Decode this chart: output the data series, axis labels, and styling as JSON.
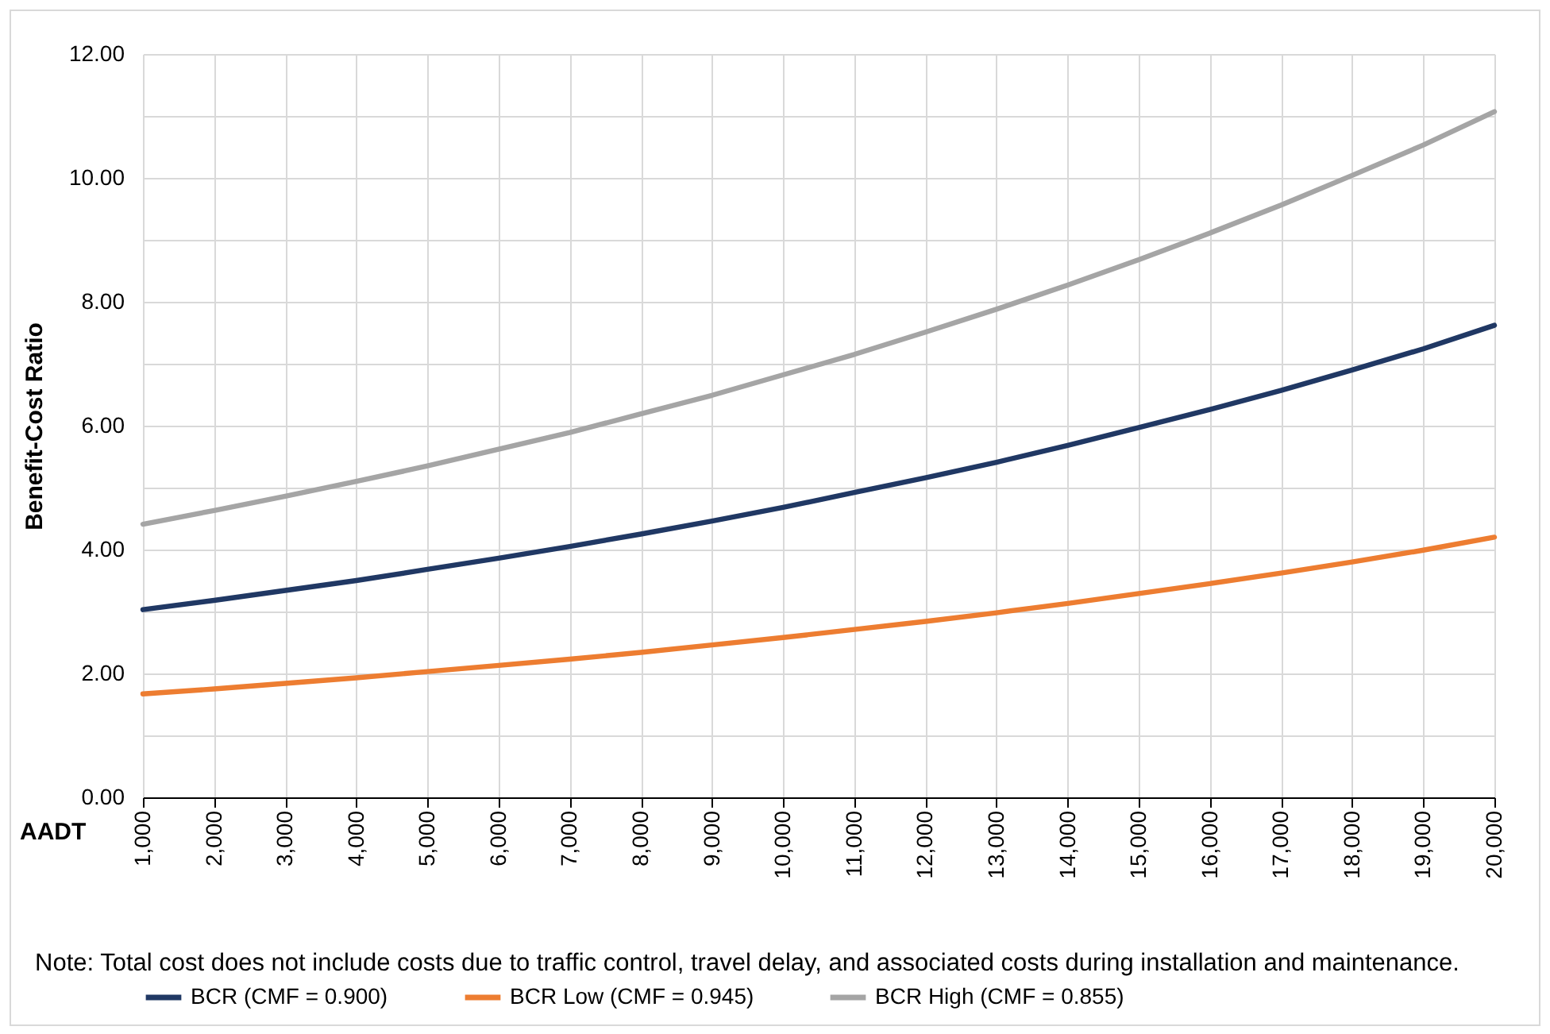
{
  "chart_data": {
    "type": "line",
    "ylabel": "Benefit-Cost Ratio",
    "xlabel": "AADT",
    "x": [
      1000,
      2000,
      3000,
      4000,
      5000,
      6000,
      7000,
      8000,
      9000,
      10000,
      11000,
      12000,
      13000,
      14000,
      15000,
      16000,
      17000,
      18000,
      19000,
      20000
    ],
    "series": [
      {
        "name": "BCR (CMF = 0.900)",
        "color": "#203864",
        "values": [
          3.03,
          3.18,
          3.34,
          3.5,
          3.68,
          3.86,
          4.05,
          4.25,
          4.46,
          4.68,
          4.92,
          5.16,
          5.41,
          5.68,
          5.97,
          6.26,
          6.57,
          6.9,
          7.24,
          7.62
        ]
      },
      {
        "name": "BCR Low (CMF = 0.945)",
        "color": "#ed7d31",
        "values": [
          1.67,
          1.75,
          1.84,
          1.93,
          2.03,
          2.13,
          2.23,
          2.34,
          2.46,
          2.58,
          2.71,
          2.84,
          2.98,
          3.13,
          3.29,
          3.45,
          3.62,
          3.8,
          3.99,
          4.2
        ]
      },
      {
        "name": "BCR High (CMF = 0.855)",
        "color": "#a5a5a5",
        "values": [
          4.41,
          4.63,
          4.86,
          5.1,
          5.35,
          5.62,
          5.89,
          6.19,
          6.49,
          6.82,
          7.15,
          7.51,
          7.88,
          8.27,
          8.68,
          9.11,
          9.56,
          10.04,
          10.53,
          11.07
        ]
      }
    ],
    "xlim": [
      1000,
      20000
    ],
    "xticks": [
      {
        "value": 1000,
        "label": "1,000"
      },
      {
        "value": 2000,
        "label": "2,000"
      },
      {
        "value": 3000,
        "label": "3,000"
      },
      {
        "value": 4000,
        "label": "4,000"
      },
      {
        "value": 5000,
        "label": "5,000"
      },
      {
        "value": 6000,
        "label": "6,000"
      },
      {
        "value": 7000,
        "label": "7,000"
      },
      {
        "value": 8000,
        "label": "8,000"
      },
      {
        "value": 9000,
        "label": "9,000"
      },
      {
        "value": 10000,
        "label": "10,000"
      },
      {
        "value": 11000,
        "label": "11,000"
      },
      {
        "value": 12000,
        "label": "12,000"
      },
      {
        "value": 13000,
        "label": "13,000"
      },
      {
        "value": 14000,
        "label": "14,000"
      },
      {
        "value": 15000,
        "label": "15,000"
      },
      {
        "value": 16000,
        "label": "16,000"
      },
      {
        "value": 17000,
        "label": "17,000"
      },
      {
        "value": 18000,
        "label": "18,000"
      },
      {
        "value": 19000,
        "label": "19,000"
      },
      {
        "value": 20000,
        "label": "20,000"
      }
    ],
    "ylim": [
      0,
      12
    ],
    "yticks": [
      {
        "value": 0,
        "label": "0.00"
      },
      {
        "value": 1,
        "label": null
      },
      {
        "value": 2,
        "label": "2.00"
      },
      {
        "value": 3,
        "label": null
      },
      {
        "value": 4,
        "label": "4.00"
      },
      {
        "value": 5,
        "label": null
      },
      {
        "value": 6,
        "label": "6.00"
      },
      {
        "value": 7,
        "label": null
      },
      {
        "value": 8,
        "label": "8.00"
      },
      {
        "value": 9,
        "label": null
      },
      {
        "value": 10,
        "label": "10.00"
      },
      {
        "value": 11,
        "label": null
      },
      {
        "value": 12,
        "label": "12.00"
      }
    ],
    "grid": true,
    "legend": "bottom",
    "marker": "none",
    "line_style": "solid",
    "annotations": [
      "Note: Total cost does not include costs due to traffic control, travel delay, and associated costs during installation and maintenance."
    ]
  }
}
